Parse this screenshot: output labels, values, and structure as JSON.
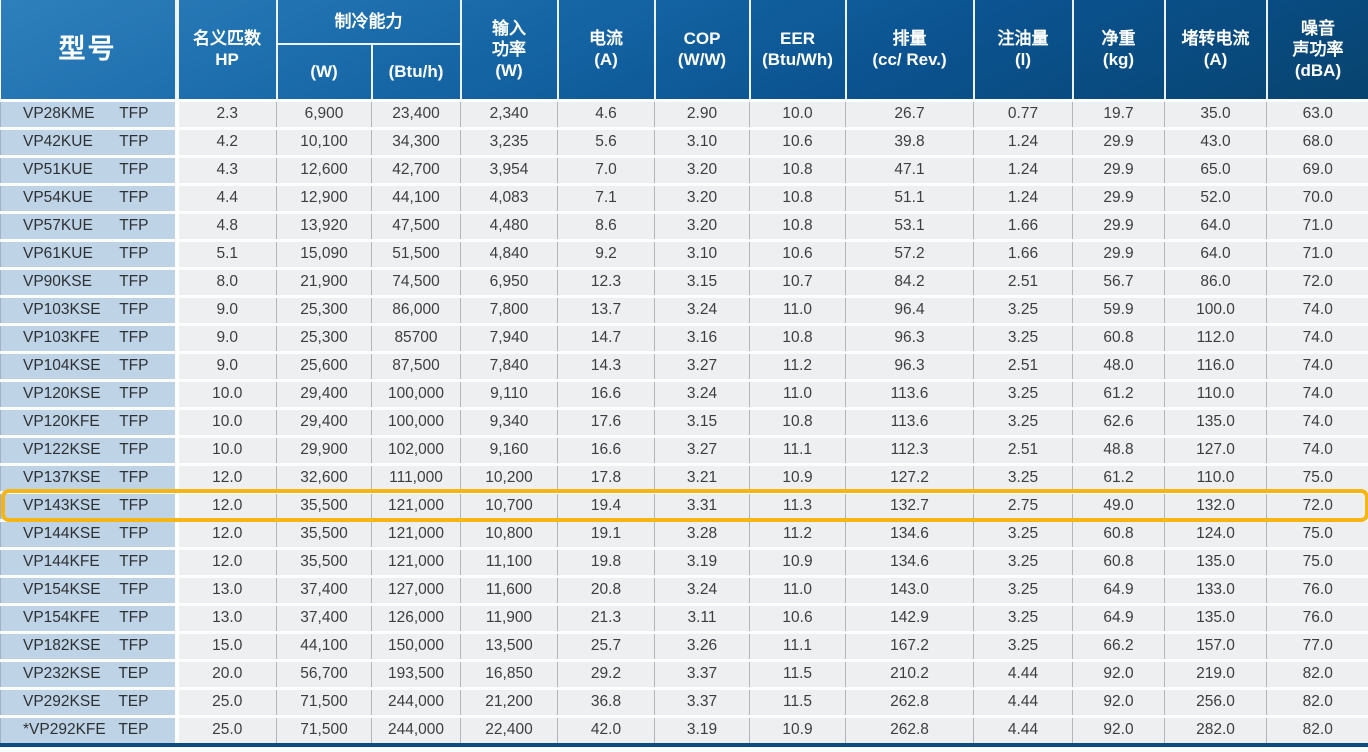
{
  "table": {
    "header": {
      "model": "型号",
      "hp": "名义匹数\nHP",
      "cooling_group": "制冷能力",
      "cooling_w": "(W)",
      "cooling_btuh": "(Btu/h)",
      "input_power": "输入\n功率\n(W)",
      "current": "电流\n(A)",
      "cop": "COP\n(W/W)",
      "eer": "EER\n(Btu/Wh)",
      "displacement": "排量\n(cc/ Rev.)",
      "oil_charge": "注油量\n(l)",
      "net_weight": "净重\n(kg)",
      "locked_rotor_current": "堵转电流\n(A)",
      "noise": "噪音\n声功率\n(dBA)"
    },
    "fields": [
      "hp",
      "cooling_w",
      "cooling_btuh",
      "input_w",
      "current",
      "cop",
      "eer",
      "displacement",
      "oil",
      "weight",
      "lra",
      "noise"
    ],
    "colors": {
      "header_gradient_top": "#2e80bc",
      "header_gradient_bottom": "#07436f",
      "model_cell_bg": "#bed3e6",
      "data_cell_bg": "#edeff1",
      "highlight_border": "#f4b515",
      "bottom_bar": "#0c4c7e"
    },
    "highlighted_model": "VP143KSE",
    "rows": [
      {
        "model": "VP28KME",
        "type": "TFP",
        "hp": "2.3",
        "cooling_w": "6,900",
        "cooling_btuh": "23,400",
        "input_w": "2,340",
        "current": "4.6",
        "cop": "2.90",
        "eer": "10.0",
        "displacement": "26.7",
        "oil": "0.77",
        "weight": "19.7",
        "lra": "35.0",
        "noise": "63.0",
        "highlight": false
      },
      {
        "model": "VP42KUE",
        "type": "TFP",
        "hp": "4.2",
        "cooling_w": "10,100",
        "cooling_btuh": "34,300",
        "input_w": "3,235",
        "current": "5.6",
        "cop": "3.10",
        "eer": "10.6",
        "displacement": "39.8",
        "oil": "1.24",
        "weight": "29.9",
        "lra": "43.0",
        "noise": "68.0",
        "highlight": false
      },
      {
        "model": "VP51KUE",
        "type": "TFP",
        "hp": "4.3",
        "cooling_w": "12,600",
        "cooling_btuh": "42,700",
        "input_w": "3,954",
        "current": "7.0",
        "cop": "3.20",
        "eer": "10.8",
        "displacement": "47.1",
        "oil": "1.24",
        "weight": "29.9",
        "lra": "65.0",
        "noise": "69.0",
        "highlight": false
      },
      {
        "model": "VP54KUE",
        "type": "TFP",
        "hp": "4.4",
        "cooling_w": "12,900",
        "cooling_btuh": "44,100",
        "input_w": "4,083",
        "current": "7.1",
        "cop": "3.20",
        "eer": "10.8",
        "displacement": "51.1",
        "oil": "1.24",
        "weight": "29.9",
        "lra": "52.0",
        "noise": "70.0",
        "highlight": false
      },
      {
        "model": "VP57KUE",
        "type": "TFP",
        "hp": "4.8",
        "cooling_w": "13,920",
        "cooling_btuh": "47,500",
        "input_w": "4,480",
        "current": "8.6",
        "cop": "3.20",
        "eer": "10.8",
        "displacement": "53.1",
        "oil": "1.66",
        "weight": "29.9",
        "lra": "64.0",
        "noise": "71.0",
        "highlight": false
      },
      {
        "model": "VP61KUE",
        "type": "TFP",
        "hp": "5.1",
        "cooling_w": "15,090",
        "cooling_btuh": "51,500",
        "input_w": "4,840",
        "current": "9.2",
        "cop": "3.10",
        "eer": "10.6",
        "displacement": "57.2",
        "oil": "1.66",
        "weight": "29.9",
        "lra": "64.0",
        "noise": "71.0",
        "highlight": false
      },
      {
        "model": "VP90KSE",
        "type": "TFP",
        "hp": "8.0",
        "cooling_w": "21,900",
        "cooling_btuh": "74,500",
        "input_w": "6,950",
        "current": "12.3",
        "cop": "3.15",
        "eer": "10.7",
        "displacement": "84.2",
        "oil": "2.51",
        "weight": "56.7",
        "lra": "86.0",
        "noise": "72.0",
        "highlight": false
      },
      {
        "model": "VP103KSE",
        "type": "TFP",
        "hp": "9.0",
        "cooling_w": "25,300",
        "cooling_btuh": "86,000",
        "input_w": "7,800",
        "current": "13.7",
        "cop": "3.24",
        "eer": "11.0",
        "displacement": "96.4",
        "oil": "3.25",
        "weight": "59.9",
        "lra": "100.0",
        "noise": "74.0",
        "highlight": false
      },
      {
        "model": "VP103KFE",
        "type": "TFP",
        "hp": "9.0",
        "cooling_w": "25,300",
        "cooling_btuh": "85700",
        "input_w": "7,940",
        "current": "14.7",
        "cop": "3.16",
        "eer": "10.8",
        "displacement": "96.3",
        "oil": "3.25",
        "weight": "60.8",
        "lra": "112.0",
        "noise": "74.0",
        "highlight": false
      },
      {
        "model": "VP104KSE",
        "type": "TFP",
        "hp": "9.0",
        "cooling_w": "25,600",
        "cooling_btuh": "87,500",
        "input_w": "7,840",
        "current": "14.3",
        "cop": "3.27",
        "eer": "11.2",
        "displacement": "96.3",
        "oil": "2.51",
        "weight": "48.0",
        "lra": "116.0",
        "noise": "74.0",
        "highlight": false
      },
      {
        "model": "VP120KSE",
        "type": "TFP",
        "hp": "10.0",
        "cooling_w": "29,400",
        "cooling_btuh": "100,000",
        "input_w": "9,110",
        "current": "16.6",
        "cop": "3.24",
        "eer": "11.0",
        "displacement": "113.6",
        "oil": "3.25",
        "weight": "61.2",
        "lra": "110.0",
        "noise": "74.0",
        "highlight": false
      },
      {
        "model": "VP120KFE",
        "type": "TFP",
        "hp": "10.0",
        "cooling_w": "29,400",
        "cooling_btuh": "100,000",
        "input_w": "9,340",
        "current": "17.6",
        "cop": "3.15",
        "eer": "10.8",
        "displacement": "113.6",
        "oil": "3.25",
        "weight": "62.6",
        "lra": "135.0",
        "noise": "74.0",
        "highlight": false
      },
      {
        "model": "VP122KSE",
        "type": "TFP",
        "hp": "10.0",
        "cooling_w": "29,900",
        "cooling_btuh": "102,000",
        "input_w": "9,160",
        "current": "16.6",
        "cop": "3.27",
        "eer": "11.1",
        "displacement": "112.3",
        "oil": "2.51",
        "weight": "48.8",
        "lra": "127.0",
        "noise": "74.0",
        "highlight": false
      },
      {
        "model": "VP137KSE",
        "type": "TFP",
        "hp": "12.0",
        "cooling_w": "32,600",
        "cooling_btuh": "111,000",
        "input_w": "10,200",
        "current": "17.8",
        "cop": "3.21",
        "eer": "10.9",
        "displacement": "127.2",
        "oil": "3.25",
        "weight": "61.2",
        "lra": "110.0",
        "noise": "75.0",
        "highlight": false
      },
      {
        "model": "VP143KSE",
        "type": "TFP",
        "hp": "12.0",
        "cooling_w": "35,500",
        "cooling_btuh": "121,000",
        "input_w": "10,700",
        "current": "19.4",
        "cop": "3.31",
        "eer": "11.3",
        "displacement": "132.7",
        "oil": "2.75",
        "weight": "49.0",
        "lra": "132.0",
        "noise": "72.0",
        "highlight": true
      },
      {
        "model": "VP144KSE",
        "type": "TFP",
        "hp": "12.0",
        "cooling_w": "35,500",
        "cooling_btuh": "121,000",
        "input_w": "10,800",
        "current": "19.1",
        "cop": "3.28",
        "eer": "11.2",
        "displacement": "134.6",
        "oil": "3.25",
        "weight": "60.8",
        "lra": "124.0",
        "noise": "75.0",
        "highlight": false
      },
      {
        "model": "VP144KFE",
        "type": "TFP",
        "hp": "12.0",
        "cooling_w": "35,500",
        "cooling_btuh": "121,000",
        "input_w": "11,100",
        "current": "19.8",
        "cop": "3.19",
        "eer": "10.9",
        "displacement": "134.6",
        "oil": "3.25",
        "weight": "60.8",
        "lra": "135.0",
        "noise": "75.0",
        "highlight": false
      },
      {
        "model": "VP154KSE",
        "type": "TFP",
        "hp": "13.0",
        "cooling_w": "37,400",
        "cooling_btuh": "127,000",
        "input_w": "11,600",
        "current": "20.8",
        "cop": "3.24",
        "eer": "11.0",
        "displacement": "143.0",
        "oil": "3.25",
        "weight": "64.9",
        "lra": "133.0",
        "noise": "76.0",
        "highlight": false
      },
      {
        "model": "VP154KFE",
        "type": "TFP",
        "hp": "13.0",
        "cooling_w": "37,400",
        "cooling_btuh": "126,000",
        "input_w": "11,900",
        "current": "21.3",
        "cop": "3.11",
        "eer": "10.6",
        "displacement": "142.9",
        "oil": "3.25",
        "weight": "64.9",
        "lra": "135.0",
        "noise": "76.0",
        "highlight": false
      },
      {
        "model": "VP182KSE",
        "type": "TFP",
        "hp": "15.0",
        "cooling_w": "44,100",
        "cooling_btuh": "150,000",
        "input_w": "13,500",
        "current": "25.7",
        "cop": "3.26",
        "eer": "11.1",
        "displacement": "167.2",
        "oil": "3.25",
        "weight": "66.2",
        "lra": "157.0",
        "noise": "77.0",
        "highlight": false
      },
      {
        "model": "VP232KSE",
        "type": "TEP",
        "hp": "20.0",
        "cooling_w": "56,700",
        "cooling_btuh": "193,500",
        "input_w": "16,850",
        "current": "29.2",
        "cop": "3.37",
        "eer": "11.5",
        "displacement": "210.2",
        "oil": "4.44",
        "weight": "92.0",
        "lra": "219.0",
        "noise": "82.0",
        "highlight": false
      },
      {
        "model": "VP292KSE",
        "type": "TEP",
        "hp": "25.0",
        "cooling_w": "71,500",
        "cooling_btuh": "244,000",
        "input_w": "21,200",
        "current": "36.8",
        "cop": "3.37",
        "eer": "11.5",
        "displacement": "262.8",
        "oil": "4.44",
        "weight": "92.0",
        "lra": "256.0",
        "noise": "82.0",
        "highlight": false
      },
      {
        "model": "*VP292KFE",
        "type": "TEP",
        "hp": "25.0",
        "cooling_w": "71,500",
        "cooling_btuh": "244,000",
        "input_w": "22,400",
        "current": "42.0",
        "cop": "3.19",
        "eer": "10.9",
        "displacement": "262.8",
        "oil": "4.44",
        "weight": "92.0",
        "lra": "282.0",
        "noise": "82.0",
        "highlight": false
      }
    ]
  }
}
